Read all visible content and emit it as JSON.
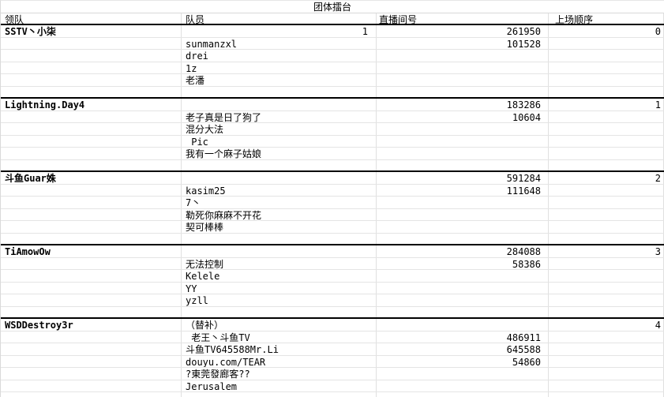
{
  "title": "团体擂台",
  "header": {
    "leader": "领队",
    "member": "队员",
    "room": "直播间号",
    "order": "上场顺序"
  },
  "rows": [
    {
      "a": "SSTV丶小柒",
      "b": "1",
      "c": "261950",
      "d": "0",
      "leader": true,
      "b_right": true
    },
    {
      "a": "",
      "b": "sunmanzxl",
      "c": "101528",
      "d": ""
    },
    {
      "a": "",
      "b": "drei",
      "c": "",
      "d": ""
    },
    {
      "a": "",
      "b": "1z",
      "c": "",
      "d": ""
    },
    {
      "a": "",
      "b": "老潘",
      "c": "",
      "d": ""
    },
    {
      "a": "",
      "b": "",
      "c": "",
      "d": "",
      "sep": true
    },
    {
      "a": "Lightning.Day4",
      "b": "",
      "c": "183286",
      "d": "1",
      "leader": true
    },
    {
      "a": "",
      "b": "老子真是日了狗了",
      "c": "10604",
      "d": ""
    },
    {
      "a": "",
      "b": "混分大法",
      "c": "",
      "d": ""
    },
    {
      "a": "",
      "b": " Pic",
      "c": "",
      "d": ""
    },
    {
      "a": "",
      "b": "我有一个麻子姑娘",
      "c": "",
      "d": ""
    },
    {
      "a": "",
      "b": "",
      "c": "",
      "d": "",
      "sep": true
    },
    {
      "a": "斗鱼Guar姝",
      "b": "",
      "c": "591284",
      "d": "2",
      "leader": true
    },
    {
      "a": "",
      "b": "kasim25",
      "c": "111648",
      "d": ""
    },
    {
      "a": "",
      "b": "7丶",
      "c": "",
      "d": ""
    },
    {
      "a": "",
      "b": "勒死你麻麻不开花",
      "c": "",
      "d": ""
    },
    {
      "a": "",
      "b": "契可棒棒",
      "c": "",
      "d": ""
    },
    {
      "a": "",
      "b": "",
      "c": "",
      "d": "",
      "sep": true
    },
    {
      "a": "TiAmowOw",
      "b": "",
      "c": "284088",
      "d": "3",
      "leader": true
    },
    {
      "a": "",
      "b": "无法控制",
      "c": "58386",
      "d": ""
    },
    {
      "a": "",
      "b": "Kelele",
      "c": "",
      "d": ""
    },
    {
      "a": "",
      "b": "YY",
      "c": "",
      "d": ""
    },
    {
      "a": "",
      "b": "yzll",
      "c": "",
      "d": ""
    },
    {
      "a": "",
      "b": "",
      "c": "",
      "d": "",
      "sep": true
    },
    {
      "a": "WSDDestroy3r",
      "b": "（替补）",
      "c": "",
      "d": "4",
      "leader": true
    },
    {
      "a": "",
      "b": " 老王丶斗鱼TV",
      "c": "486911",
      "d": ""
    },
    {
      "a": "",
      "b": "斗鱼TV645588Mr.Li",
      "c": "645588",
      "d": ""
    },
    {
      "a": "",
      "b": "douyu.com/TEAR",
      "c": "54860",
      "d": ""
    },
    {
      "a": "",
      "b": "?東莞發廊客??",
      "c": "",
      "d": ""
    },
    {
      "a": "",
      "b": "Jerusalem",
      "c": "",
      "d": ""
    },
    {
      "a": "",
      "b": "",
      "c": "",
      "d": "",
      "partial": true
    }
  ]
}
